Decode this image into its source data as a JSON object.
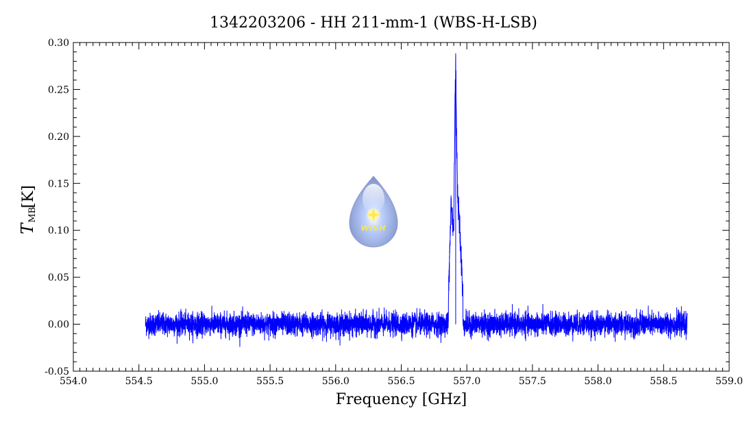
{
  "chart_data": {
    "type": "line",
    "title": "1342203206 - HH 211-mm-1 (WBS-H-LSB)",
    "xlabel": "Frequency [GHz]",
    "ylabel": "T",
    "ylabel_sub": "MB",
    "ylabel_unit": "[K]",
    "xlim": [
      554.0,
      559.0
    ],
    "ylim": [
      -0.05,
      0.3
    ],
    "x_ticks": [
      "554.0",
      "554.5",
      "555.0",
      "555.5",
      "556.0",
      "556.5",
      "557.0",
      "557.5",
      "558.0",
      "558.5",
      "559.0"
    ],
    "y_ticks": [
      "-0.05",
      "0.00",
      "0.05",
      "0.10",
      "0.15",
      "0.20",
      "0.25",
      "0.30"
    ],
    "grid": false,
    "legend": "none",
    "series": [
      {
        "color": "#0000ff",
        "x_range": [
          554.55,
          558.68
        ],
        "baseline": 0.0,
        "noise_rms": 0.006,
        "features": [
          {
            "x": 556.86,
            "y": 0.03
          },
          {
            "x": 556.88,
            "y": 0.13
          },
          {
            "x": 556.9,
            "y": 0.1
          },
          {
            "x": 556.91,
            "y": 0.24
          },
          {
            "x": 556.915,
            "y": 0.288
          },
          {
            "x": 556.92,
            "y": 0.21
          },
          {
            "x": 556.93,
            "y": 0.14
          },
          {
            "x": 556.95,
            "y": 0.09
          },
          {
            "x": 556.97,
            "y": 0.03
          }
        ]
      }
    ],
    "logo": {
      "text": "WISH",
      "icon": "water-drop-star-icon"
    }
  }
}
